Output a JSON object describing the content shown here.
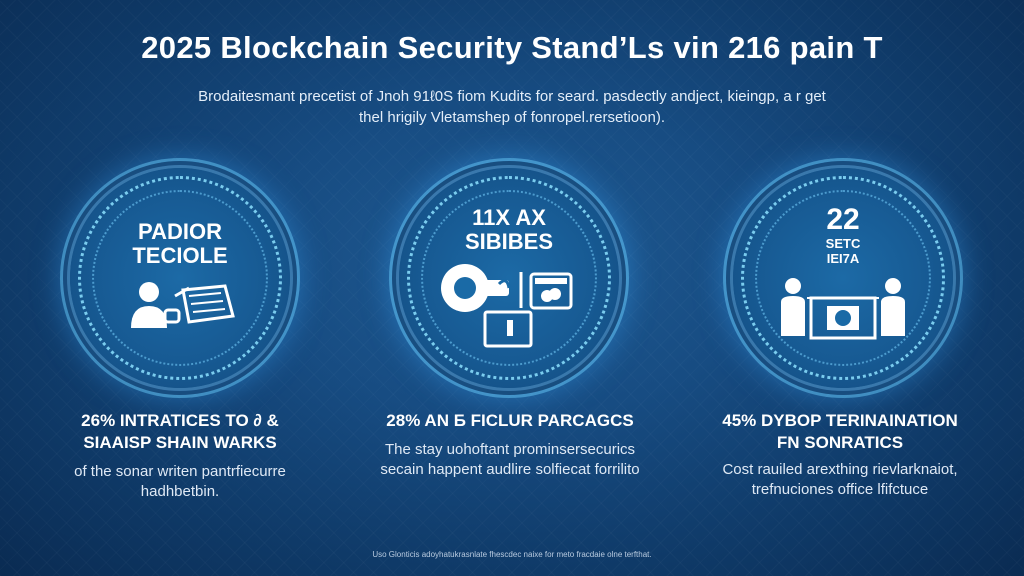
{
  "title": "2025 Blockchain Security Stand’Ls vin 216 pain T",
  "subtitle": {
    "line1": "Brodaitesmant precetist of Jnoh 91ℓ0S fiom Kudits for seard. pasdectly andject, kieingp, a r get",
    "line2": "thel hrigily Vletamshep of fonropel.rersetioon)."
  },
  "badges": [
    {
      "text_line1": "PADIOR",
      "text_line2": "TECIOLE",
      "icon": "user-document-icon"
    },
    {
      "text_line1": "11X AX",
      "text_line2": "SIBIBES",
      "icon": "lock-computer-icon"
    },
    {
      "text_line1": "22",
      "text_line2": "SETC",
      "text_line3": "IEI7A",
      "icon": "people-monitor-icon"
    }
  ],
  "stats": [
    {
      "head_line1": "26% INTRATICES TO ∂ &",
      "head_line2": "SIAAISP SHAIN WARKS",
      "body_line1": "of the sonar writen pantrfiecurre",
      "body_line2": "hadhbetbin."
    },
    {
      "head_line1": "28% AN Б FICLUR PARCAGCS",
      "body_line1": "The stay uohoftant prominsersecurics",
      "body_line2": "secain happent audlire solfiecat forrilito"
    },
    {
      "head_line1": "45% DYBOP TERINAINATION",
      "head_line2": "FN SONRATICS",
      "body_line1": "Cost rauiled arexthing rievlarknaiot,",
      "body_line2": "trefnuciones office lfifctuce"
    }
  ],
  "footer": "Uso Glonticis adoyhatukrasnlate fhescdec naixe for meto fracdaie olne terfthat.",
  "colors": {
    "background": "#174c82",
    "ring_glow": "#6ed2ff",
    "text": "#ffffff"
  }
}
